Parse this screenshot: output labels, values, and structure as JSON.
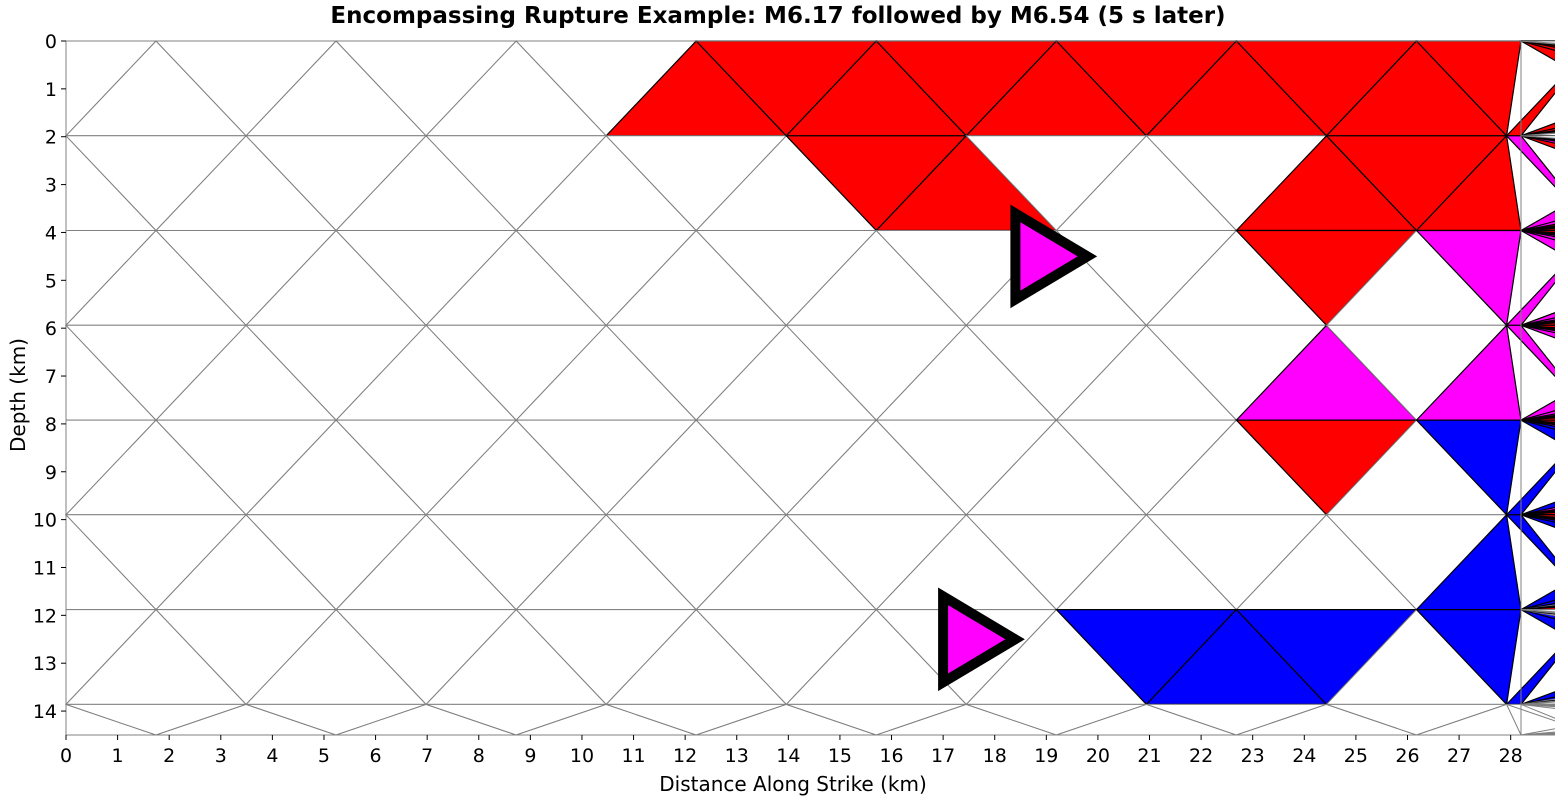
{
  "chart_data": {
    "type": "mesh",
    "title": "Encompassing Rupture Example: M6.17 followed by M6.54 (5 s later)",
    "xlabel": "Distance Along Strike (km)",
    "ylabel": "Depth (km)",
    "xlim": [
      0,
      28.2
    ],
    "ylim": [
      14.5,
      0
    ],
    "x_ticks": [
      0,
      1,
      2,
      3,
      4,
      5,
      6,
      7,
      8,
      9,
      10,
      11,
      12,
      13,
      14,
      15,
      16,
      17,
      18,
      19,
      20,
      21,
      22,
      23,
      24,
      25,
      26,
      27,
      28
    ],
    "y_ticks": [
      0,
      1,
      2,
      3,
      4,
      5,
      6,
      7,
      8,
      9,
      10,
      11,
      12,
      13,
      14
    ],
    "colors": {
      "first_rupture": "#0000ff",
      "second_rupture": "#ff0000",
      "overlap": "#ff00ff",
      "unruptured": "#ffffff",
      "mesh_edge": "#808080",
      "ruptured_edge": "#000000",
      "hypocenter_marker": "#000000"
    },
    "mesh_row_depths_km": [
      0,
      1.98,
      3.96,
      5.94,
      7.92,
      9.9,
      11.88,
      13.86,
      14.5
    ],
    "mesh_column_spacing_km": 3.49,
    "rows": [
      [
        "w",
        "w",
        "w",
        "w",
        "w",
        "w",
        "w",
        "r",
        "r",
        "r",
        "r",
        "r",
        "r",
        "r",
        "r",
        "r",
        "r",
        "r",
        "r",
        "r",
        "r",
        "r",
        "r",
        "r",
        "r",
        "r",
        "r",
        "r",
        "w",
        "w",
        "w",
        "w",
        "w"
      ],
      [
        "w",
        "w",
        "w",
        "w",
        "w",
        "w",
        "w",
        "w",
        "w",
        "r",
        "r",
        "w",
        "w",
        "w",
        "r",
        "r",
        "r",
        "m",
        "m",
        "r",
        "m",
        "m",
        "r",
        "r",
        "r",
        "r",
        "r",
        "r",
        "r",
        "r",
        "r",
        "w",
        "r"
      ],
      [
        "w",
        "w",
        "w",
        "w",
        "w",
        "w",
        "w",
        "w",
        "w",
        "w",
        "w",
        "w",
        "w",
        "w",
        "r",
        "w",
        "m",
        "m",
        "m",
        "m",
        "m",
        "m",
        "m",
        "m",
        "r",
        "r",
        "r",
        "r",
        "r",
        "r",
        "r",
        "r",
        "r"
      ],
      [
        "w",
        "w",
        "w",
        "w",
        "w",
        "w",
        "w",
        "w",
        "w",
        "w",
        "w",
        "w",
        "w",
        "w",
        "m",
        "w",
        "m",
        "m",
        "m",
        "m",
        "m",
        "m",
        "m",
        "m",
        "r",
        "r",
        "r",
        "r",
        "r",
        "r",
        "r",
        "r",
        "r"
      ],
      [
        "w",
        "w",
        "w",
        "w",
        "w",
        "w",
        "w",
        "w",
        "w",
        "w",
        "w",
        "w",
        "w",
        "w",
        "r",
        "w",
        "b",
        "b",
        "b",
        "b",
        "b",
        "m",
        "m",
        "m",
        "r",
        "r",
        "r",
        "r",
        "r",
        "r",
        "r",
        "r",
        "r"
      ],
      [
        "w",
        "w",
        "w",
        "w",
        "w",
        "w",
        "w",
        "w",
        "w",
        "w",
        "w",
        "w",
        "w",
        "w",
        "w",
        "w",
        "b",
        "b",
        "b",
        "b",
        "b",
        "b",
        "b",
        "m",
        "w",
        "r",
        "r",
        "r",
        "r",
        "r",
        "r",
        "r",
        "r"
      ],
      [
        "w",
        "w",
        "w",
        "w",
        "w",
        "w",
        "w",
        "w",
        "w",
        "w",
        "w",
        "w",
        "b",
        "b",
        "b",
        "w",
        "b",
        "b",
        "b",
        "b",
        "b",
        "b",
        "w",
        "w",
        "r",
        "r",
        "w",
        "w",
        "w",
        "w",
        "w",
        "w",
        "w"
      ],
      [
        "w",
        "w",
        "w",
        "w",
        "w",
        "w",
        "w",
        "w",
        "w",
        "w",
        "w",
        "w",
        "w",
        "w",
        "w",
        "w",
        "w",
        "w",
        "w",
        "w",
        "w",
        "w",
        "w",
        "w",
        "w",
        "w",
        "w",
        "w",
        "w",
        "w",
        "w",
        "w",
        "w"
      ]
    ],
    "hypocenters": [
      {
        "name": "M6.17",
        "x": 17.0,
        "y": 12.5,
        "fill": "#ff00ff"
      },
      {
        "name": "M6.54",
        "x": 18.4,
        "y": 4.5,
        "fill": "#ff00ff"
      }
    ]
  }
}
